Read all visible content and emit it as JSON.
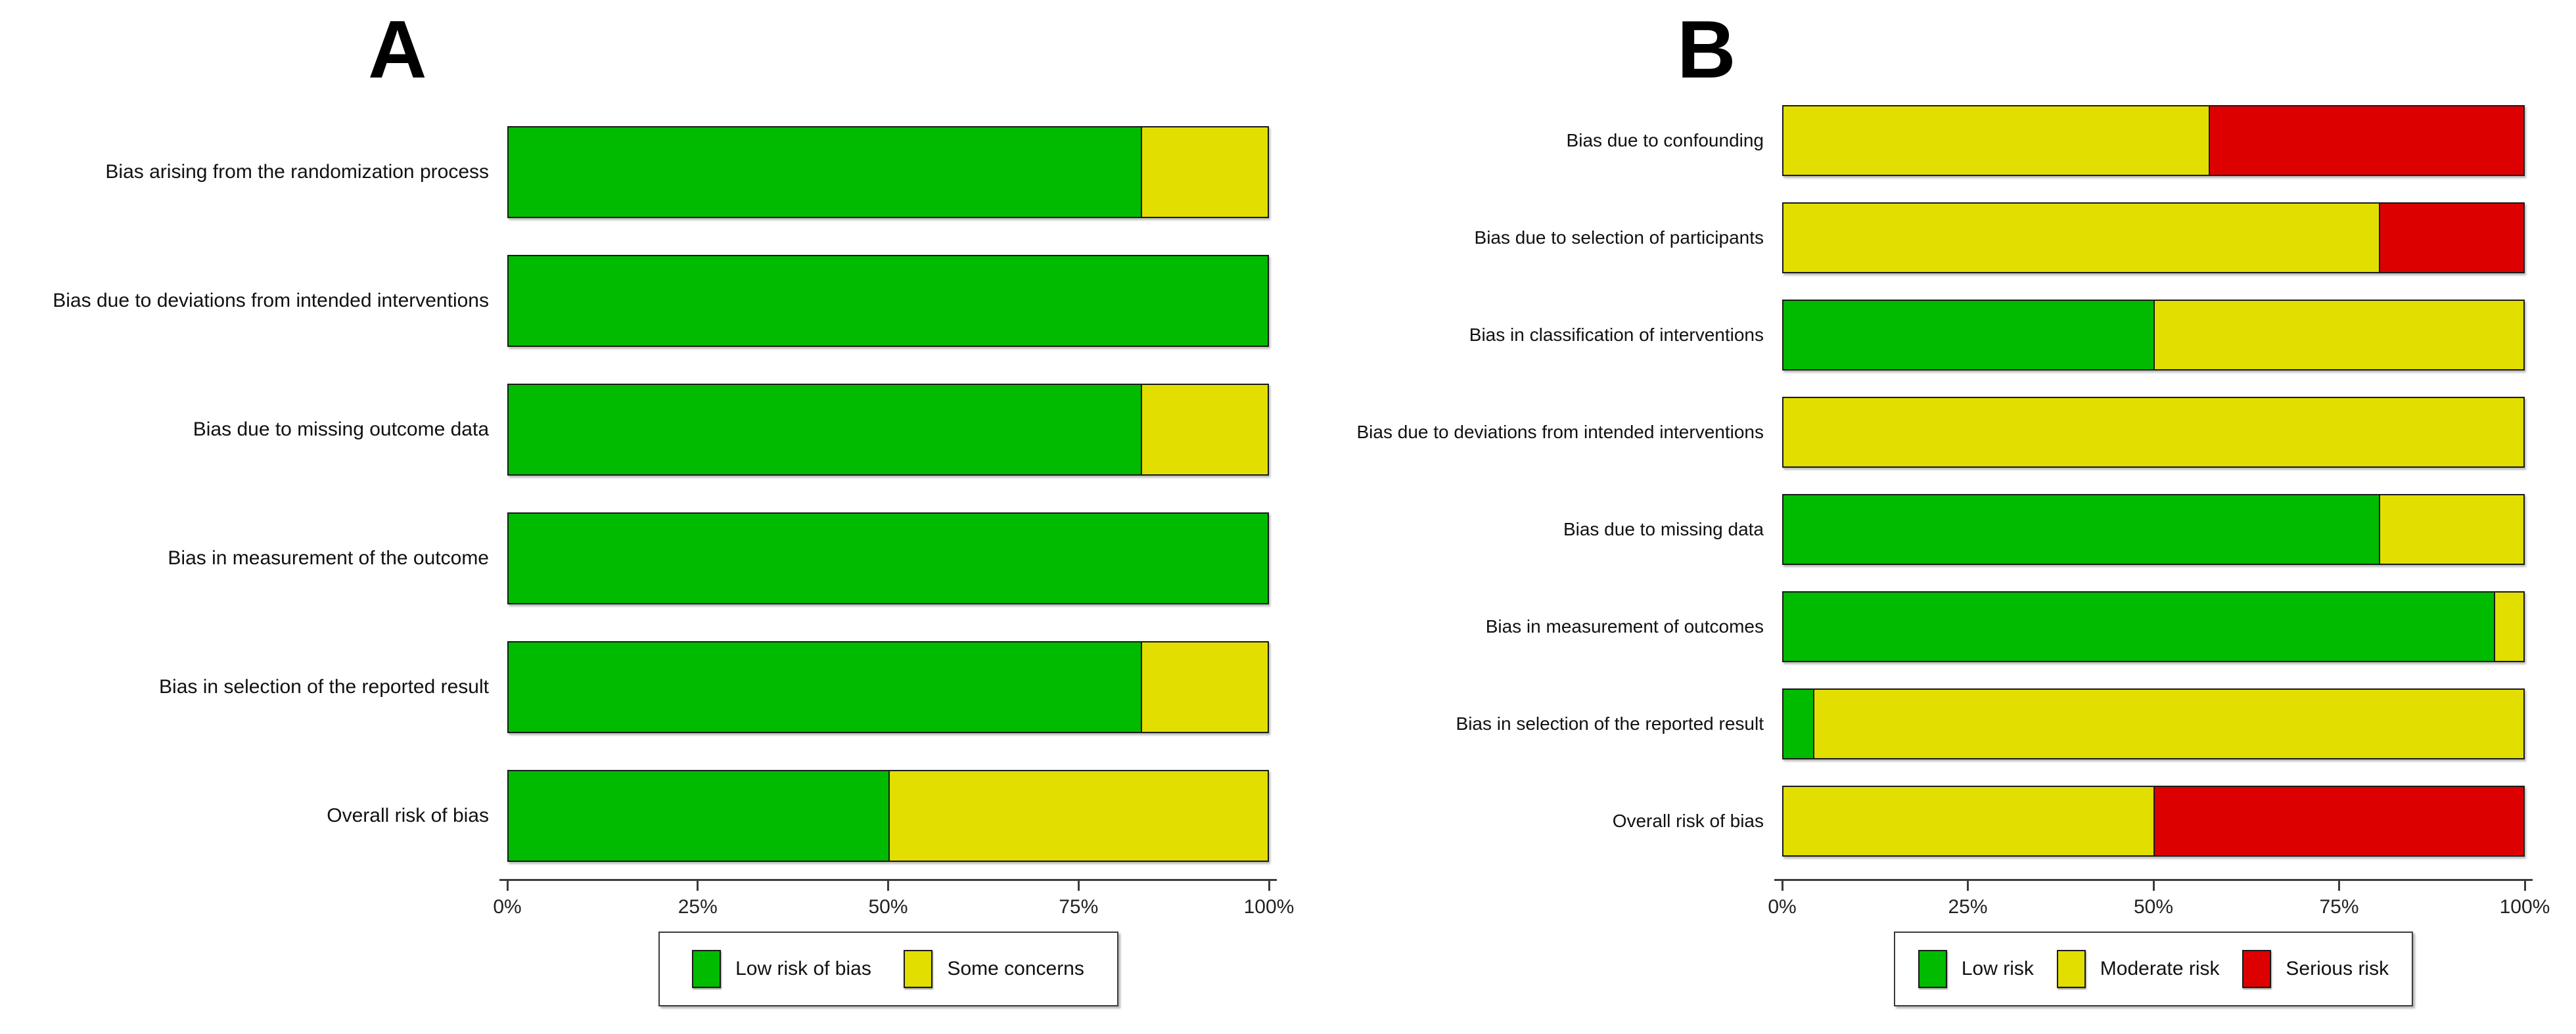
{
  "figure_type": "risk-of-bias summary barplots",
  "colors": {
    "low_risk_green": "#00BB00",
    "moderate_yellow": "#E2DE00",
    "serious_red": "#DD0000",
    "bar_border": "#1A1A1A",
    "axis": "#3C3C3C",
    "text": "#111111",
    "background": "#FFFFFF"
  },
  "chart_data": [
    {
      "type": "bar",
      "stacked": true,
      "orientation": "horizontal",
      "title": "A",
      "categories": [
        "Bias arising from the randomization process",
        "Bias due to deviations from intended interventions",
        "Bias due to missing outcome data",
        "Bias in measurement of the outcome",
        "Bias in selection of the reported result",
        "Overall risk of bias"
      ],
      "series": [
        {
          "name": "Low risk of bias",
          "color": "#00BB00",
          "values": [
            83.3,
            100,
            83.3,
            100,
            83.3,
            50
          ]
        },
        {
          "name": "Some concerns",
          "color": "#E2DE00",
          "values": [
            16.7,
            0,
            16.7,
            0,
            16.7,
            50
          ]
        }
      ],
      "xlabel": "",
      "ylabel": "",
      "xlim": [
        0,
        100
      ],
      "x_ticks": [
        "0%",
        "25%",
        "50%",
        "75%",
        "100%"
      ],
      "grid": false,
      "legend_position": "bottom"
    },
    {
      "type": "bar",
      "stacked": true,
      "orientation": "horizontal",
      "title": "B",
      "categories": [
        "Bias due to confounding",
        "Bias due to selection of participants",
        "Bias in classification of interventions",
        "Bias due to deviations from intended interventions",
        "Bias due to missing data",
        "Bias in measurement of outcomes",
        "Bias in selection of the reported result",
        "Overall risk of bias"
      ],
      "series": [
        {
          "name": "Low risk",
          "color": "#00BB00",
          "values": [
            0,
            0,
            50,
            0,
            80.5,
            96,
            4,
            0
          ]
        },
        {
          "name": "Moderate risk",
          "color": "#E2DE00",
          "values": [
            57.5,
            80.5,
            50,
            100,
            19.5,
            4,
            96,
            50
          ]
        },
        {
          "name": "Serious risk",
          "color": "#DD0000",
          "values": [
            42.5,
            19.5,
            0,
            0,
            0,
            0,
            0,
            50
          ]
        }
      ],
      "xlabel": "",
      "ylabel": "",
      "xlim": [
        0,
        100
      ],
      "x_ticks": [
        "0%",
        "25%",
        "50%",
        "75%",
        "100%"
      ],
      "grid": false,
      "legend_position": "bottom"
    }
  ]
}
